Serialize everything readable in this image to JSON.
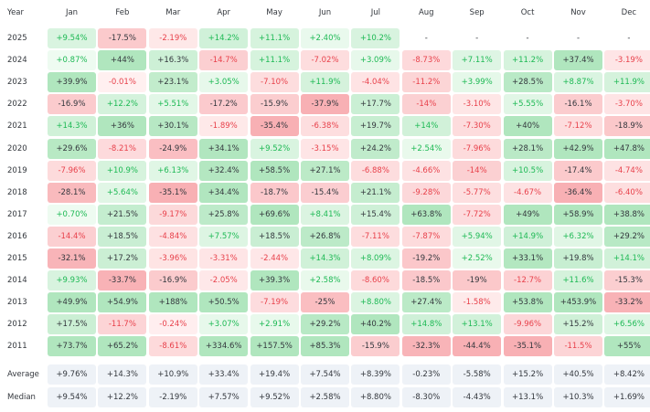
{
  "chart_data": {
    "type": "heatmap",
    "title": "",
    "row_header": "Year",
    "columns": [
      "Jan",
      "Feb",
      "Mar",
      "Apr",
      "May",
      "Jun",
      "Jul",
      "Aug",
      "Sep",
      "Oct",
      "Nov",
      "Dec"
    ],
    "rows": [
      {
        "label": "2025",
        "values": [
          "+9.54%",
          "-17.5%",
          "-2.19%",
          "+14.2%",
          "+11.1%",
          "+2.40%",
          "+10.2%",
          "-",
          "-",
          "-",
          "-",
          "-"
        ]
      },
      {
        "label": "2024",
        "values": [
          "+0.87%",
          "+44%",
          "+16.3%",
          "-14.7%",
          "+11.1%",
          "-7.02%",
          "+3.09%",
          "-8.73%",
          "+7.11%",
          "+11.2%",
          "+37.4%",
          "-3.19%"
        ]
      },
      {
        "label": "2023",
        "values": [
          "+39.9%",
          "-0.01%",
          "+23.1%",
          "+3.05%",
          "-7.10%",
          "+11.9%",
          "-4.04%",
          "-11.2%",
          "+3.99%",
          "+28.5%",
          "+8.87%",
          "+11.9%"
        ]
      },
      {
        "label": "2022",
        "values": [
          "-16.9%",
          "+12.2%",
          "+5.51%",
          "-17.2%",
          "-15.9%",
          "-37.9%",
          "+17.7%",
          "-14%",
          "-3.10%",
          "+5.55%",
          "-16.1%",
          "-3.70%"
        ]
      },
      {
        "label": "2021",
        "values": [
          "+14.3%",
          "+36%",
          "+30.1%",
          "-1.89%",
          "-35.4%",
          "-6.38%",
          "+19.7%",
          "+14%",
          "-7.30%",
          "+40%",
          "-7.12%",
          "-18.9%"
        ]
      },
      {
        "label": "2020",
        "values": [
          "+29.6%",
          "-8.21%",
          "-24.9%",
          "+34.1%",
          "+9.52%",
          "-3.15%",
          "+24.2%",
          "+2.54%",
          "-7.96%",
          "+28.1%",
          "+42.9%",
          "+47.8%"
        ]
      },
      {
        "label": "2019",
        "values": [
          "-7.96%",
          "+10.9%",
          "+6.13%",
          "+32.4%",
          "+58.5%",
          "+27.1%",
          "-6.88%",
          "-4.66%",
          "-14%",
          "+10.5%",
          "-17.4%",
          "-4.74%"
        ]
      },
      {
        "label": "2018",
        "values": [
          "-28.1%",
          "+5.64%",
          "-35.1%",
          "+34.4%",
          "-18.7%",
          "-15.4%",
          "+21.1%",
          "-9.28%",
          "-5.77%",
          "-4.67%",
          "-36.4%",
          "-6.40%"
        ]
      },
      {
        "label": "2017",
        "values": [
          "+0.70%",
          "+21.5%",
          "-9.17%",
          "+25.8%",
          "+69.6%",
          "+8.41%",
          "+15.4%",
          "+63.8%",
          "-7.72%",
          "+49%",
          "+58.9%",
          "+38.8%"
        ]
      },
      {
        "label": "2016",
        "values": [
          "-14.4%",
          "+18.5%",
          "-4.84%",
          "+7.57%",
          "+18.5%",
          "+26.8%",
          "-7.11%",
          "-7.87%",
          "+5.94%",
          "+14.9%",
          "+6.32%",
          "+29.2%"
        ]
      },
      {
        "label": "2015",
        "values": [
          "-32.1%",
          "+17.2%",
          "-3.96%",
          "-3.31%",
          "-2.44%",
          "+14.3%",
          "+8.09%",
          "-19.2%",
          "+2.52%",
          "+33.1%",
          "+19.8%",
          "+14.1%"
        ]
      },
      {
        "label": "2014",
        "values": [
          "+9.93%",
          "-33.7%",
          "-16.9%",
          "-2.05%",
          "+39.3%",
          "+2.58%",
          "-8.60%",
          "-18.5%",
          "-19%",
          "-12.7%",
          "+11.6%",
          "-15.3%"
        ]
      },
      {
        "label": "2013",
        "values": [
          "+49.9%",
          "+54.9%",
          "+188%",
          "+50.5%",
          "-7.19%",
          "-25%",
          "+8.80%",
          "+27.4%",
          "-1.58%",
          "+53.8%",
          "+453.9%",
          "-33.2%"
        ]
      },
      {
        "label": "2012",
        "values": [
          "+17.5%",
          "-11.7%",
          "-0.24%",
          "+3.07%",
          "+2.91%",
          "+29.2%",
          "+40.2%",
          "+14.8%",
          "+13.1%",
          "-9.96%",
          "+15.2%",
          "+6.56%"
        ]
      },
      {
        "label": "2011",
        "values": [
          "+73.7%",
          "+65.2%",
          "-8.61%",
          "+334.6%",
          "+157.5%",
          "+85.3%",
          "-15.9%",
          "-32.3%",
          "-44.4%",
          "-35.1%",
          "-11.5%",
          "+55%"
        ]
      }
    ],
    "summary": [
      {
        "label": "Average",
        "values": [
          "+9.76%",
          "+14.3%",
          "+10.9%",
          "+33.4%",
          "+19.4%",
          "+7.54%",
          "+8.39%",
          "-0.23%",
          "-5.58%",
          "+15.2%",
          "+40.5%",
          "+8.42%"
        ]
      },
      {
        "label": "Median",
        "values": [
          "+9.54%",
          "+12.2%",
          "-2.19%",
          "+7.57%",
          "+9.52%",
          "+2.58%",
          "+8.80%",
          "-8.30%",
          "-4.43%",
          "+13.1%",
          "+10.3%",
          "+1.69%"
        ]
      }
    ]
  },
  "colors": {
    "positive_text": "#1db954",
    "negative_text": "#e8414b",
    "neutral_text": "#33373d",
    "summary_bg": "#eef2f7",
    "header_text": "#33373d"
  }
}
